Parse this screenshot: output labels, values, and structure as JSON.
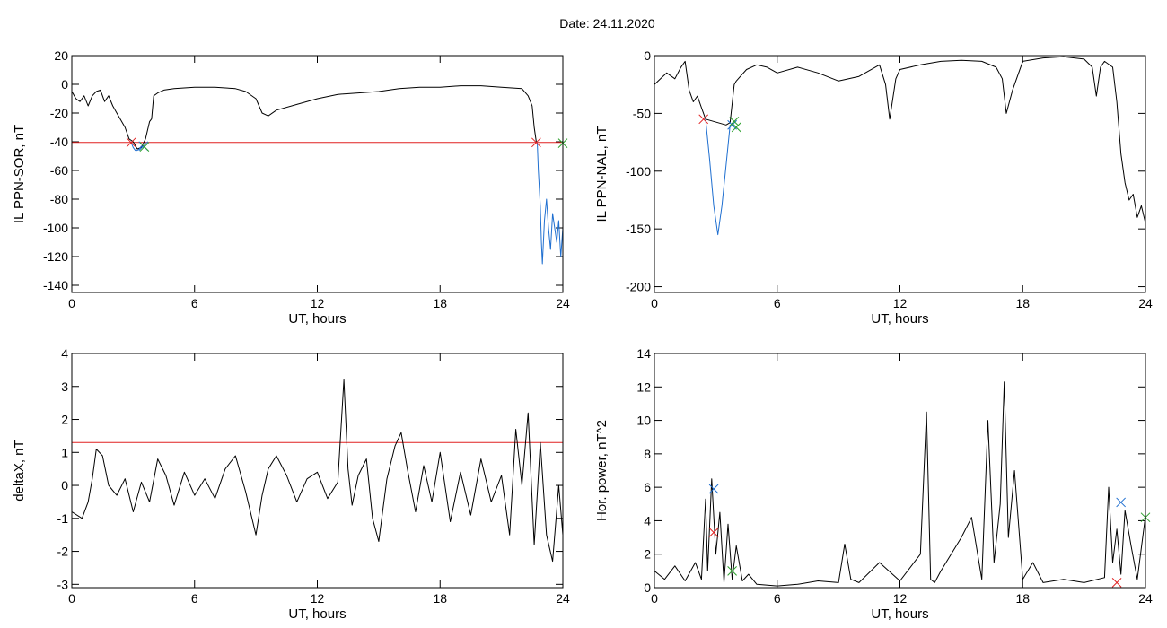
{
  "figure_title": "Date:  24.11.2020",
  "chart_data": [
    {
      "type": "line",
      "xlabel": "UT, hours",
      "ylabel": "IL PPN-SOR, nT",
      "xlim": [
        0,
        24
      ],
      "ylim": [
        -145,
        20
      ],
      "xticks": [
        0,
        6,
        12,
        18,
        24
      ],
      "yticks": [
        20,
        0,
        -20,
        -40,
        -60,
        -80,
        -100,
        -120,
        -140
      ],
      "threshold": -40.5,
      "series": [
        {
          "color": "#000000",
          "x": [
            0,
            0.2,
            0.4,
            0.6,
            0.8,
            1.0,
            1.2,
            1.4,
            1.6,
            1.8,
            2.0,
            2.2,
            2.4,
            2.6,
            2.8,
            3.0,
            3.2,
            3.4,
            3.6,
            3.8,
            3.9,
            4.0,
            4.2,
            4.5,
            5,
            6,
            7,
            8,
            8.5,
            9,
            9.3,
            9.6,
            10,
            11,
            12,
            13,
            14,
            15,
            16,
            17,
            18,
            19,
            20,
            21,
            22,
            22.3,
            22.5,
            22.6,
            22.7
          ],
          "y": [
            -5,
            -10,
            -12,
            -8,
            -15,
            -8,
            -5,
            -4,
            -12,
            -8,
            -15,
            -20,
            -25,
            -30,
            -38,
            -40,
            -45,
            -44,
            -38,
            -26,
            -24,
            -8,
            -6,
            -4,
            -3,
            -2,
            -2,
            -3,
            -5,
            -10,
            -20,
            -22,
            -18,
            -14,
            -10,
            -7,
            -6,
            -5,
            -3,
            -2,
            -2,
            -1,
            -1,
            -2,
            -3,
            -8,
            -15,
            -30,
            -40
          ]
        },
        {
          "color": "#1f6fd0",
          "x": [
            2.9,
            3.0,
            3.1,
            3.2,
            3.3,
            3.4,
            3.5
          ],
          "y": [
            -40.5,
            -44,
            -46,
            -46,
            -45,
            -43,
            -44
          ]
        },
        {
          "color": "#1f6fd0",
          "x": [
            22.75,
            22.8,
            22.9,
            22.95,
            23.0,
            23.1,
            23.2,
            23.3,
            23.4,
            23.5,
            23.6,
            23.7,
            23.8,
            23.9,
            24.0
          ],
          "y": [
            -40.5,
            -60,
            -85,
            -110,
            -125,
            -95,
            -80,
            -100,
            -115,
            -90,
            -100,
            -110,
            -95,
            -120,
            -100
          ]
        }
      ],
      "markers": [
        {
          "x": 2.9,
          "y": -40.5,
          "color": "#e02020"
        },
        {
          "x": 3.5,
          "y": -43,
          "color": "#1f6fd0"
        },
        {
          "x": 3.55,
          "y": -43.5,
          "color": "#2ca02c"
        },
        {
          "x": 22.7,
          "y": -40.5,
          "color": "#e02020"
        },
        {
          "x": 24.0,
          "y": -41,
          "color": "#2ca02c"
        }
      ]
    },
    {
      "type": "line",
      "xlabel": "UT, hours",
      "ylabel": "IL PPN-NAL, nT",
      "xlim": [
        0,
        24
      ],
      "ylim": [
        -205,
        0
      ],
      "xticks": [
        0,
        6,
        12,
        18,
        24
      ],
      "yticks": [
        0,
        -50,
        -100,
        -150,
        -200
      ],
      "threshold": -61,
      "series": [
        {
          "color": "#000000",
          "x": [
            0,
            0.3,
            0.6,
            1.0,
            1.3,
            1.5,
            1.7,
            1.9,
            2.1,
            2.3,
            2.5,
            3.5,
            3.7,
            3.9,
            4.0,
            4.2,
            4.5,
            5,
            5.5,
            6,
            7,
            8,
            9,
            10,
            11,
            11.3,
            11.5,
            11.8,
            12,
            13,
            14,
            15,
            16,
            16.7,
            17.0,
            17.2,
            17.5,
            18,
            19,
            20,
            21,
            21.4,
            21.6,
            21.8,
            22,
            22.4,
            22.6
          ],
          "y": [
            -25,
            -20,
            -15,
            -20,
            -10,
            -5,
            -30,
            -40,
            -35,
            -45,
            -55,
            -60,
            -58,
            -25,
            -22,
            -18,
            -12,
            -8,
            -10,
            -15,
            -10,
            -15,
            -22,
            -18,
            -8,
            -25,
            -55,
            -20,
            -12,
            -8,
            -5,
            -4,
            -5,
            -10,
            -20,
            -50,
            -30,
            -5,
            -2,
            -1,
            -3,
            -10,
            -35,
            -10,
            -5,
            -10,
            -40
          ]
        },
        {
          "color": "#1f6fd0",
          "x": [
            2.5,
            2.7,
            2.9,
            3.1,
            3.3,
            3.5,
            3.7
          ],
          "y": [
            -55,
            -90,
            -130,
            -155,
            -130,
            -95,
            -60
          ]
        },
        {
          "color": "#000000",
          "x": [
            22.6,
            22.8,
            23.0,
            23.2,
            23.4,
            23.6,
            23.8,
            24.0
          ],
          "y": [
            -40,
            -85,
            -110,
            -125,
            -120,
            -140,
            -130,
            -145
          ]
        }
      ],
      "markers": [
        {
          "x": 2.4,
          "y": -55,
          "color": "#e02020"
        },
        {
          "x": 3.8,
          "y": -60,
          "color": "#1f6fd0"
        },
        {
          "x": 3.9,
          "y": -57,
          "color": "#2ca02c"
        },
        {
          "x": 4.0,
          "y": -62,
          "color": "#2ca02c"
        }
      ]
    },
    {
      "type": "line",
      "xlabel": "UT, hours",
      "ylabel": "deltaX, nT",
      "xlim": [
        0,
        24
      ],
      "ylim": [
        -3.1,
        4
      ],
      "xticks": [
        0,
        6,
        12,
        18,
        24
      ],
      "yticks": [
        4,
        3,
        2,
        1,
        0,
        -1,
        -2,
        -3
      ],
      "threshold": 1.3,
      "series": [
        {
          "color": "#000000",
          "x": [
            0,
            0.5,
            0.8,
            1.0,
            1.2,
            1.5,
            1.8,
            2.2,
            2.6,
            3.0,
            3.4,
            3.8,
            4.2,
            4.6,
            5.0,
            5.5,
            6.0,
            6.5,
            7.0,
            7.5,
            8.0,
            8.5,
            9.0,
            9.3,
            9.6,
            10.0,
            10.5,
            11.0,
            11.5,
            12.0,
            12.5,
            13.0,
            13.3,
            13.5,
            13.7,
            14.0,
            14.4,
            14.7,
            15.0,
            15.4,
            15.8,
            16.1,
            16.4,
            16.8,
            17.2,
            17.6,
            18.0,
            18.5,
            19.0,
            19.5,
            20.0,
            20.5,
            21.0,
            21.4,
            21.7,
            22.0,
            22.3,
            22.6,
            22.9,
            23.2,
            23.5,
            23.8,
            24.0
          ],
          "y": [
            -0.8,
            -1.0,
            -0.5,
            0.2,
            1.1,
            0.9,
            0.0,
            -0.3,
            0.2,
            -0.8,
            0.1,
            -0.5,
            0.8,
            0.3,
            -0.6,
            0.4,
            -0.3,
            0.2,
            -0.4,
            0.5,
            0.9,
            -0.2,
            -1.5,
            -0.3,
            0.5,
            0.9,
            0.3,
            -0.5,
            0.2,
            0.4,
            -0.4,
            0.1,
            3.2,
            0.5,
            -0.6,
            0.3,
            0.8,
            -1.0,
            -1.7,
            0.2,
            1.2,
            1.6,
            0.5,
            -0.8,
            0.6,
            -0.5,
            1.0,
            -1.1,
            0.4,
            -0.9,
            0.8,
            -0.5,
            0.3,
            -1.5,
            1.7,
            0.0,
            2.2,
            -1.8,
            1.3,
            -1.5,
            -2.3,
            0.0,
            -1.5
          ]
        }
      ],
      "markers": []
    },
    {
      "type": "line",
      "xlabel": "UT, hours",
      "ylabel": "Hor. power, nT^2",
      "xlim": [
        0,
        24
      ],
      "ylim": [
        0,
        14
      ],
      "xticks": [
        0,
        6,
        12,
        18,
        24
      ],
      "yticks": [
        14,
        12,
        10,
        8,
        6,
        4,
        2,
        0
      ],
      "series": [
        {
          "color": "#000000",
          "x": [
            0,
            0.5,
            1.0,
            1.5,
            2.0,
            2.3,
            2.5,
            2.6,
            2.8,
            3.0,
            3.2,
            3.4,
            3.6,
            3.8,
            4.0,
            4.3,
            4.6,
            5.0,
            6.0,
            7.0,
            8.0,
            9.0,
            9.3,
            9.6,
            10.0,
            11.0,
            12.0,
            13.0,
            13.3,
            13.5,
            13.7,
            14.0,
            15.0,
            15.5,
            16.0,
            16.3,
            16.6,
            16.9,
            17.1,
            17.3,
            17.6,
            18.0,
            18.5,
            19.0,
            20.0,
            21.0,
            22.0,
            22.2,
            22.4,
            22.6,
            22.8,
            23.0,
            23.3,
            23.6,
            24.0
          ],
          "y": [
            1.0,
            0.5,
            1.3,
            0.4,
            1.5,
            0.5,
            5.3,
            1.0,
            6.5,
            2.0,
            4.5,
            0.3,
            3.8,
            0.5,
            2.5,
            0.4,
            0.8,
            0.2,
            0.1,
            0.2,
            0.4,
            0.3,
            2.6,
            0.5,
            0.3,
            1.5,
            0.4,
            2.0,
            10.5,
            0.5,
            0.3,
            1.0,
            3.0,
            4.2,
            0.5,
            10.0,
            1.5,
            5.0,
            12.3,
            3.0,
            7.0,
            0.5,
            1.5,
            0.3,
            0.5,
            0.3,
            0.6,
            6.0,
            1.5,
            3.5,
            0.8,
            4.6,
            2.5,
            0.5,
            4.3
          ]
        }
      ],
      "markers": [
        {
          "x": 2.9,
          "y": 5.9,
          "color": "#1f6fd0"
        },
        {
          "x": 2.9,
          "y": 3.3,
          "color": "#e02020"
        },
        {
          "x": 3.8,
          "y": 1.0,
          "color": "#2ca02c"
        },
        {
          "x": 22.8,
          "y": 5.1,
          "color": "#1f6fd0"
        },
        {
          "x": 22.6,
          "y": 0.3,
          "color": "#e02020"
        },
        {
          "x": 24.0,
          "y": 4.2,
          "color": "#2ca02c"
        }
      ]
    }
  ]
}
